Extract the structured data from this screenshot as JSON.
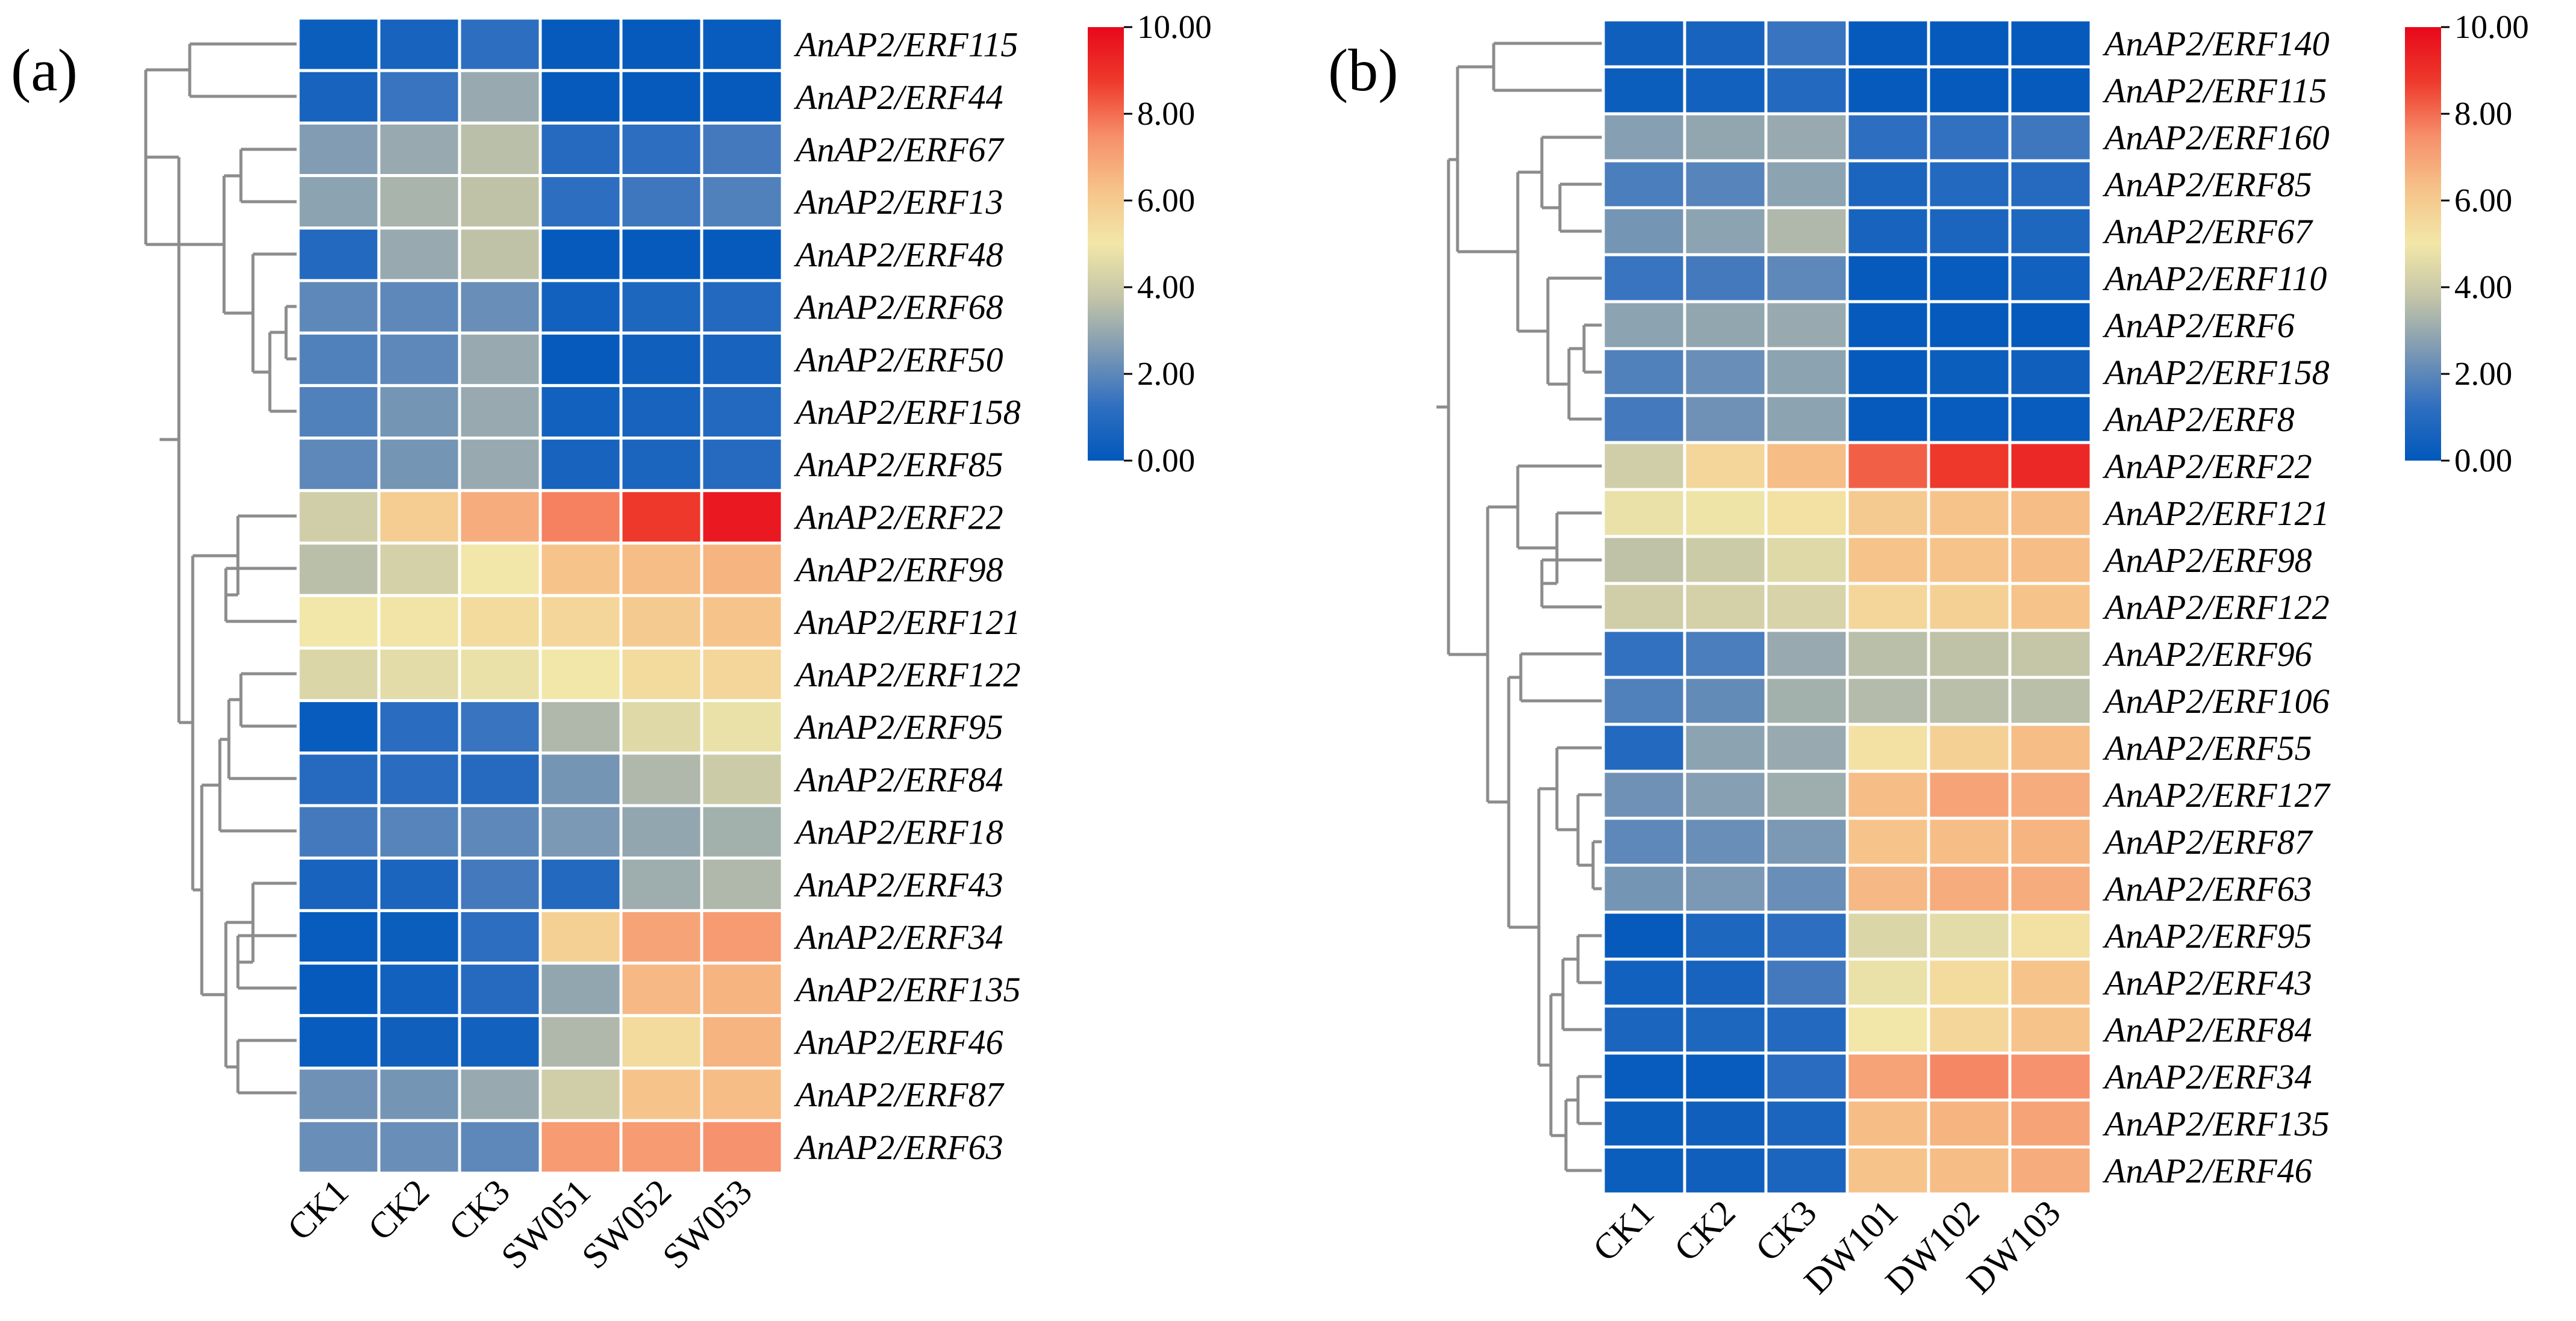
{
  "colors": {
    "scale": [
      "#0158bc",
      "#2f6fc0",
      "#7b98b4",
      "#c3c4a8",
      "#f2e7a8",
      "#f6c38a",
      "#f68e6a",
      "#ee3a2c",
      "#e8081a"
    ]
  },
  "chart_data": [
    {
      "type": "heatmap",
      "panel_label": "(a)",
      "title": "",
      "columns": [
        "CK1",
        "CK2",
        "CK3",
        "SW051",
        "SW052",
        "SW053"
      ],
      "rows": [
        "AnAP2/ERF115",
        "AnAP2/ERF44",
        "AnAP2/ERF67",
        "AnAP2/ERF13",
        "AnAP2/ERF48",
        "AnAP2/ERF68",
        "AnAP2/ERF50",
        "AnAP2/ERF158",
        "AnAP2/ERF85",
        "AnAP2/ERF22",
        "AnAP2/ERF98",
        "AnAP2/ERF121",
        "AnAP2/ERF122",
        "AnAP2/ERF95",
        "AnAP2/ERF84",
        "AnAP2/ERF18",
        "AnAP2/ERF43",
        "AnAP2/ERF34",
        "AnAP2/ERF135",
        "AnAP2/ERF46",
        "AnAP2/ERF87",
        "AnAP2/ERF63"
      ],
      "values": [
        [
          0.3,
          0.6,
          1.2,
          0.1,
          0.1,
          0.2
        ],
        [
          0.6,
          1.4,
          3.0,
          0.1,
          0.1,
          0.1
        ],
        [
          2.6,
          3.0,
          3.6,
          1.0,
          1.2,
          1.6
        ],
        [
          2.8,
          3.3,
          3.7,
          1.2,
          1.5,
          1.8
        ],
        [
          0.9,
          3.0,
          3.7,
          0.1,
          0.1,
          0.1
        ],
        [
          2.0,
          2.0,
          2.2,
          0.5,
          0.8,
          0.9
        ],
        [
          1.8,
          2.0,
          3.0,
          0.1,
          0.4,
          0.6
        ],
        [
          1.8,
          2.4,
          3.0,
          0.5,
          0.6,
          0.9
        ],
        [
          2.0,
          2.4,
          3.0,
          0.6,
          0.7,
          1.0
        ],
        [
          4.1,
          5.9,
          6.8,
          7.7,
          8.8,
          9.6
        ],
        [
          3.6,
          4.2,
          5.0,
          6.2,
          6.4,
          6.6
        ],
        [
          5.0,
          5.1,
          5.4,
          5.6,
          6.0,
          6.2
        ],
        [
          4.4,
          4.6,
          4.8,
          5.0,
          5.4,
          5.6
        ],
        [
          0.2,
          1.1,
          1.4,
          3.4,
          4.5,
          4.8
        ],
        [
          1.0,
          1.1,
          1.0,
          2.4,
          3.4,
          4.0
        ],
        [
          1.6,
          1.9,
          2.0,
          2.5,
          2.9,
          3.2
        ],
        [
          0.6,
          0.7,
          1.6,
          0.9,
          3.1,
          3.4
        ],
        [
          0.2,
          0.3,
          1.2,
          5.8,
          7.0,
          7.2
        ],
        [
          0.1,
          0.5,
          1.0,
          2.9,
          6.5,
          6.6
        ],
        [
          0.2,
          0.4,
          0.5,
          3.4,
          5.4,
          6.6
        ],
        [
          2.3,
          2.4,
          3.0,
          4.1,
          6.2,
          6.4
        ],
        [
          2.2,
          2.2,
          2.0,
          7.2,
          7.2,
          7.4
        ]
      ],
      "colorbar": {
        "ticks": [
          "0.00",
          "2.00",
          "4.00",
          "6.00",
          "8.00",
          "10.00"
        ],
        "range": [
          0,
          10
        ]
      }
    },
    {
      "type": "heatmap",
      "panel_label": "(b)",
      "title": "",
      "columns": [
        "CK1",
        "CK2",
        "CK3",
        "DW101",
        "DW102",
        "DW103"
      ],
      "rows": [
        "AnAP2/ERF140",
        "AnAP2/ERF115",
        "AnAP2/ERF160",
        "AnAP2/ERF85",
        "AnAP2/ERF67",
        "AnAP2/ERF110",
        "AnAP2/ERF6",
        "AnAP2/ERF158",
        "AnAP2/ERF8",
        "AnAP2/ERF22",
        "AnAP2/ERF121",
        "AnAP2/ERF98",
        "AnAP2/ERF122",
        "AnAP2/ERF96",
        "AnAP2/ERF106",
        "AnAP2/ERF55",
        "AnAP2/ERF127",
        "AnAP2/ERF87",
        "AnAP2/ERF63",
        "AnAP2/ERF95",
        "AnAP2/ERF43",
        "AnAP2/ERF84",
        "AnAP2/ERF34",
        "AnAP2/ERF135",
        "AnAP2/ERF46"
      ],
      "values": [
        [
          0.4,
          0.6,
          1.4,
          0.1,
          0.1,
          0.1
        ],
        [
          0.3,
          0.5,
          0.9,
          0.1,
          0.1,
          0.1
        ],
        [
          2.7,
          2.9,
          3.0,
          1.2,
          1.3,
          1.5
        ],
        [
          1.7,
          1.9,
          2.8,
          0.7,
          0.9,
          1.0
        ],
        [
          2.4,
          2.8,
          3.4,
          0.6,
          0.7,
          0.8
        ],
        [
          1.4,
          1.6,
          2.0,
          0.1,
          0.2,
          0.5
        ],
        [
          2.8,
          2.9,
          3.0,
          0.1,
          0.1,
          0.1
        ],
        [
          1.8,
          2.2,
          2.8,
          0.1,
          0.3,
          0.4
        ],
        [
          1.6,
          2.3,
          2.8,
          0.1,
          0.2,
          0.2
        ],
        [
          4.1,
          5.6,
          6.4,
          8.2,
          8.8,
          9.2
        ],
        [
          4.8,
          4.9,
          5.2,
          6.0,
          6.2,
          6.4
        ],
        [
          3.7,
          4.0,
          4.5,
          6.2,
          6.2,
          6.4
        ],
        [
          4.1,
          4.2,
          4.3,
          5.6,
          5.8,
          6.2
        ],
        [
          1.3,
          1.7,
          3.0,
          3.6,
          3.7,
          3.8
        ],
        [
          1.8,
          2.1,
          3.2,
          3.5,
          3.6,
          3.6
        ],
        [
          0.9,
          2.8,
          3.0,
          5.2,
          5.8,
          6.4
        ],
        [
          2.3,
          2.7,
          3.1,
          6.4,
          7.0,
          6.8
        ],
        [
          2.0,
          2.2,
          2.5,
          6.2,
          6.4,
          6.6
        ],
        [
          2.4,
          2.5,
          2.2,
          6.5,
          6.8,
          6.8
        ],
        [
          0.1,
          0.8,
          1.2,
          4.4,
          4.6,
          5.2
        ],
        [
          0.5,
          0.6,
          1.6,
          4.8,
          5.4,
          6.2
        ],
        [
          0.7,
          0.8,
          0.9,
          5.0,
          5.6,
          6.2
        ],
        [
          0.2,
          0.2,
          1.1,
          7.0,
          7.6,
          7.4
        ],
        [
          0.3,
          0.4,
          0.7,
          6.4,
          6.6,
          7.0
        ],
        [
          0.3,
          0.4,
          0.7,
          6.2,
          6.4,
          6.8
        ]
      ],
      "colorbar": {
        "ticks": [
          "0.00",
          "2.00",
          "4.00",
          "6.00",
          "8.00",
          "10.00"
        ],
        "range": [
          0,
          10
        ]
      }
    }
  ]
}
